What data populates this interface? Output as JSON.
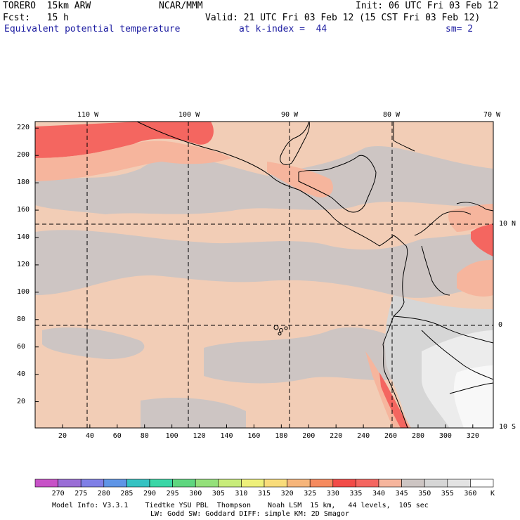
{
  "header": {
    "model": "TORERO  15km ARW",
    "center": "NCAR/MMM",
    "init": "Init: 06 UTC Fri 03 Feb 12",
    "fcst": "Fcst:   15 h",
    "valid": "Valid: 21 UTC Fri 03 Feb 12 (15 CST Fri 03 Feb 12)",
    "field": "Equivalent potential temperature",
    "level": "at k-index =  44",
    "smoothing": "sm= 2"
  },
  "map": {
    "top_lon_labels": [
      "110 W",
      "100 W",
      "90 W",
      "80 W",
      "70 W"
    ],
    "right_lat_labels": [
      "10 N",
      "0",
      "10 S"
    ],
    "y_grid_labels": [
      "220",
      "200",
      "180",
      "160",
      "140",
      "120",
      "100",
      "80",
      "60",
      "40",
      "20"
    ],
    "x_grid_labels": [
      "20",
      "40",
      "60",
      "80",
      "100",
      "120",
      "140",
      "160",
      "180",
      "200",
      "220",
      "240",
      "260",
      "280",
      "300",
      "320"
    ],
    "colors": {
      "dominant_warm": "#f2cdb6",
      "dominant_gray": "#cdc5c3",
      "peach": "#f6b59d",
      "red": "#f46660",
      "light_gray": "#d9d9d9",
      "white": "#f2f2f2"
    }
  },
  "colorbar": {
    "labels": [
      "270",
      "275",
      "280",
      "285",
      "290",
      "295",
      "300",
      "305",
      "310",
      "315",
      "320",
      "325",
      "330",
      "335",
      "340",
      "345",
      "350",
      "355",
      "360"
    ],
    "unit": "K",
    "colors": [
      "#c752c7",
      "#9a6ed6",
      "#7f7fe6",
      "#5f95e6",
      "#35c2c2",
      "#3ad6a6",
      "#5fd67f",
      "#94e07a",
      "#c8ec7a",
      "#eef07a",
      "#f9dc7a",
      "#f6b57a",
      "#f58a5f",
      "#f24c48",
      "#f46660",
      "#f6b59d",
      "#cdc5c3",
      "#d6d6d6",
      "#e3e3e3",
      "#ffffff"
    ]
  },
  "footer": {
    "line1": "Model Info: V3.3.1    Tiedtke YSU PBL  Thompson    Noah LSM  15 km,   44 levels,  105 sec",
    "line2": "LW: Godd SW: Goddard DIFF: simple KM: 2D Smagor"
  }
}
